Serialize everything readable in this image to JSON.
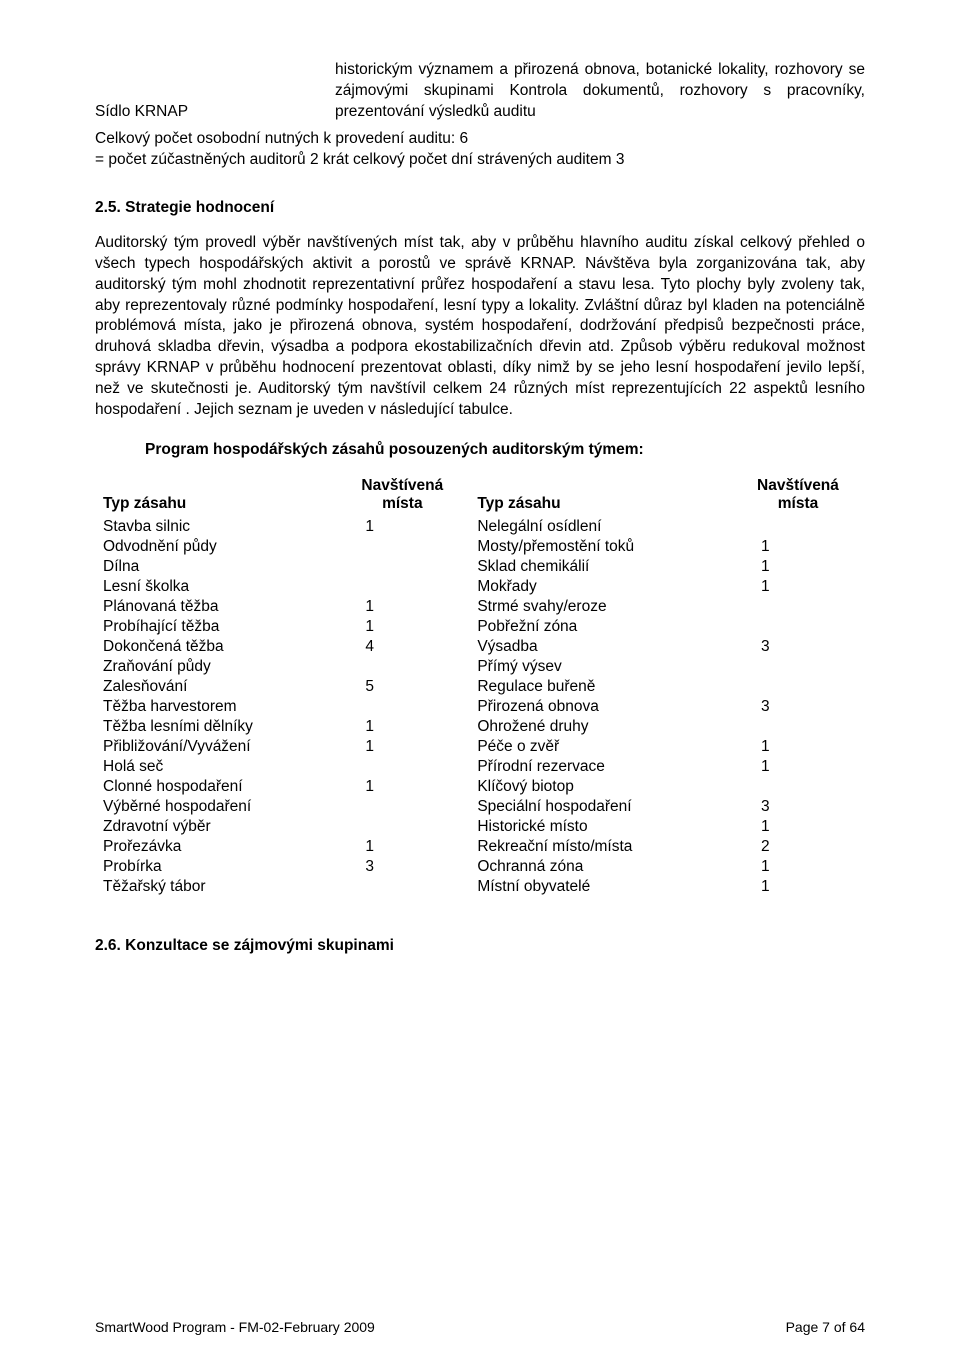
{
  "top": {
    "left_label": "Sídlo KRNAP",
    "right_para": "historickým významem a přirozená obnova, botanické lokality, rozhovory se zájmovými skupinami Kontrola dokumentů, rozhovory s pracovníky, prezentování výsledků auditu",
    "line1": "Celkový počet osobodní nutných k provedení auditu: 6",
    "line2": "= počet zúčastněných auditorů 2 krát celkový počet dní strávených auditem 3"
  },
  "section25": {
    "heading": "2.5.   Strategie hodnocení",
    "para": "Auditorský tým provedl výběr navštívených míst tak, aby v průběhu hlavního auditu získal celkový přehled o všech typech hospodářských aktivit a porostů ve správě KRNAP. Návštěva byla zorganizována tak, aby auditorský tým mohl zhodnotit reprezentativní průřez hospodaření a stavu lesa. Tyto plochy byly zvoleny tak, aby reprezentovaly různé podmínky hospodaření, lesní typy a lokality. Zvláštní důraz byl kladen na potenciálně problémová místa, jako je přirozená obnova, systém hospodaření, dodržování předpisů bezpečnosti práce, druhová skladba dřevin, výsadba a podpora ekostabilizačních dřevin atd. Způsob výběru redukoval možnost správy KRNAP v průběhu hodnocení prezentovat oblasti, díky nimž by se jeho lesní hospodaření jevilo lepší, než ve skutečnosti je. Auditorský tým navštívil celkem 24 různých míst reprezentujících 22 aspektů lesního hospodaření . Jejich seznam je uveden v následující tabulce."
  },
  "program": {
    "title": "Program hospodářských zásahů posouzených auditorským týmem:",
    "header_left": "Typ zásahu",
    "header_mid1": "Navštívená místa",
    "header_right": "Typ zásahu",
    "header_mid2": "Navštívená místa",
    "rows": [
      {
        "l": "Stavba silnic",
        "lv": "1",
        "r": "Nelegální osídlení",
        "rv": ""
      },
      {
        "l": "Odvodnění půdy",
        "lv": "",
        "r": "Mosty/přemostění toků",
        "rv": "1"
      },
      {
        "l": "Dílna",
        "lv": "",
        "r": "Sklad chemikálií",
        "rv": "1"
      },
      {
        "l": "Lesní školka",
        "lv": "",
        "r": "Mokřady",
        "rv": "1"
      },
      {
        "l": "Plánovaná těžba",
        "lv": "1",
        "r": "Strmé svahy/eroze",
        "rv": ""
      },
      {
        "l": "Probíhající těžba",
        "lv": "1",
        "r": "Pobřežní zóna",
        "rv": ""
      },
      {
        "l": "Dokončená těžba",
        "lv": "4",
        "r": "Výsadba",
        "rv": "3"
      },
      {
        "l": "Zraňování půdy",
        "lv": "",
        "r": "Přímý výsev",
        "rv": ""
      },
      {
        "l": "Zalesňování",
        "lv": "5",
        "r": "Regulace buřeně",
        "rv": ""
      },
      {
        "l": "Těžba harvestorem",
        "lv": "",
        "r": "Přirozená obnova",
        "rv": "3"
      },
      {
        "l": "Těžba lesními dělníky",
        "lv": "1",
        "r": "Ohrožené druhy",
        "rv": ""
      },
      {
        "l": "Přibližování/Vyvážení",
        "lv": "1",
        "r": "Péče o zvěř",
        "rv": "1"
      },
      {
        "l": "Holá seč",
        "lv": "",
        "r": "Přírodní rezervace",
        "rv": "1"
      },
      {
        "l": "Clonné hospodaření",
        "lv": "1",
        "r": "Klíčový biotop",
        "rv": ""
      },
      {
        "l": "Výběrné hospodaření",
        "lv": "",
        "r": "Speciální hospodaření",
        "rv": "3"
      },
      {
        "l": "Zdravotní výběr",
        "lv": "",
        "r": "Historické místo",
        "rv": "1"
      },
      {
        "l": "Prořezávka",
        "lv": "1",
        "r": "Rekreační místo/místa",
        "rv": "2"
      },
      {
        "l": "Probírka",
        "lv": "3",
        "r": "Ochranná zóna",
        "rv": "1"
      },
      {
        "l": "Těžařský tábor",
        "lv": "",
        "r": "Místní obyvatelé",
        "rv": "1"
      }
    ]
  },
  "section26": {
    "heading": "2.6.   Konzultace se zájmovými skupinami"
  },
  "footer": {
    "left": "SmartWood Program - FM-02-February 2009",
    "right": "Page 7 of 64"
  }
}
